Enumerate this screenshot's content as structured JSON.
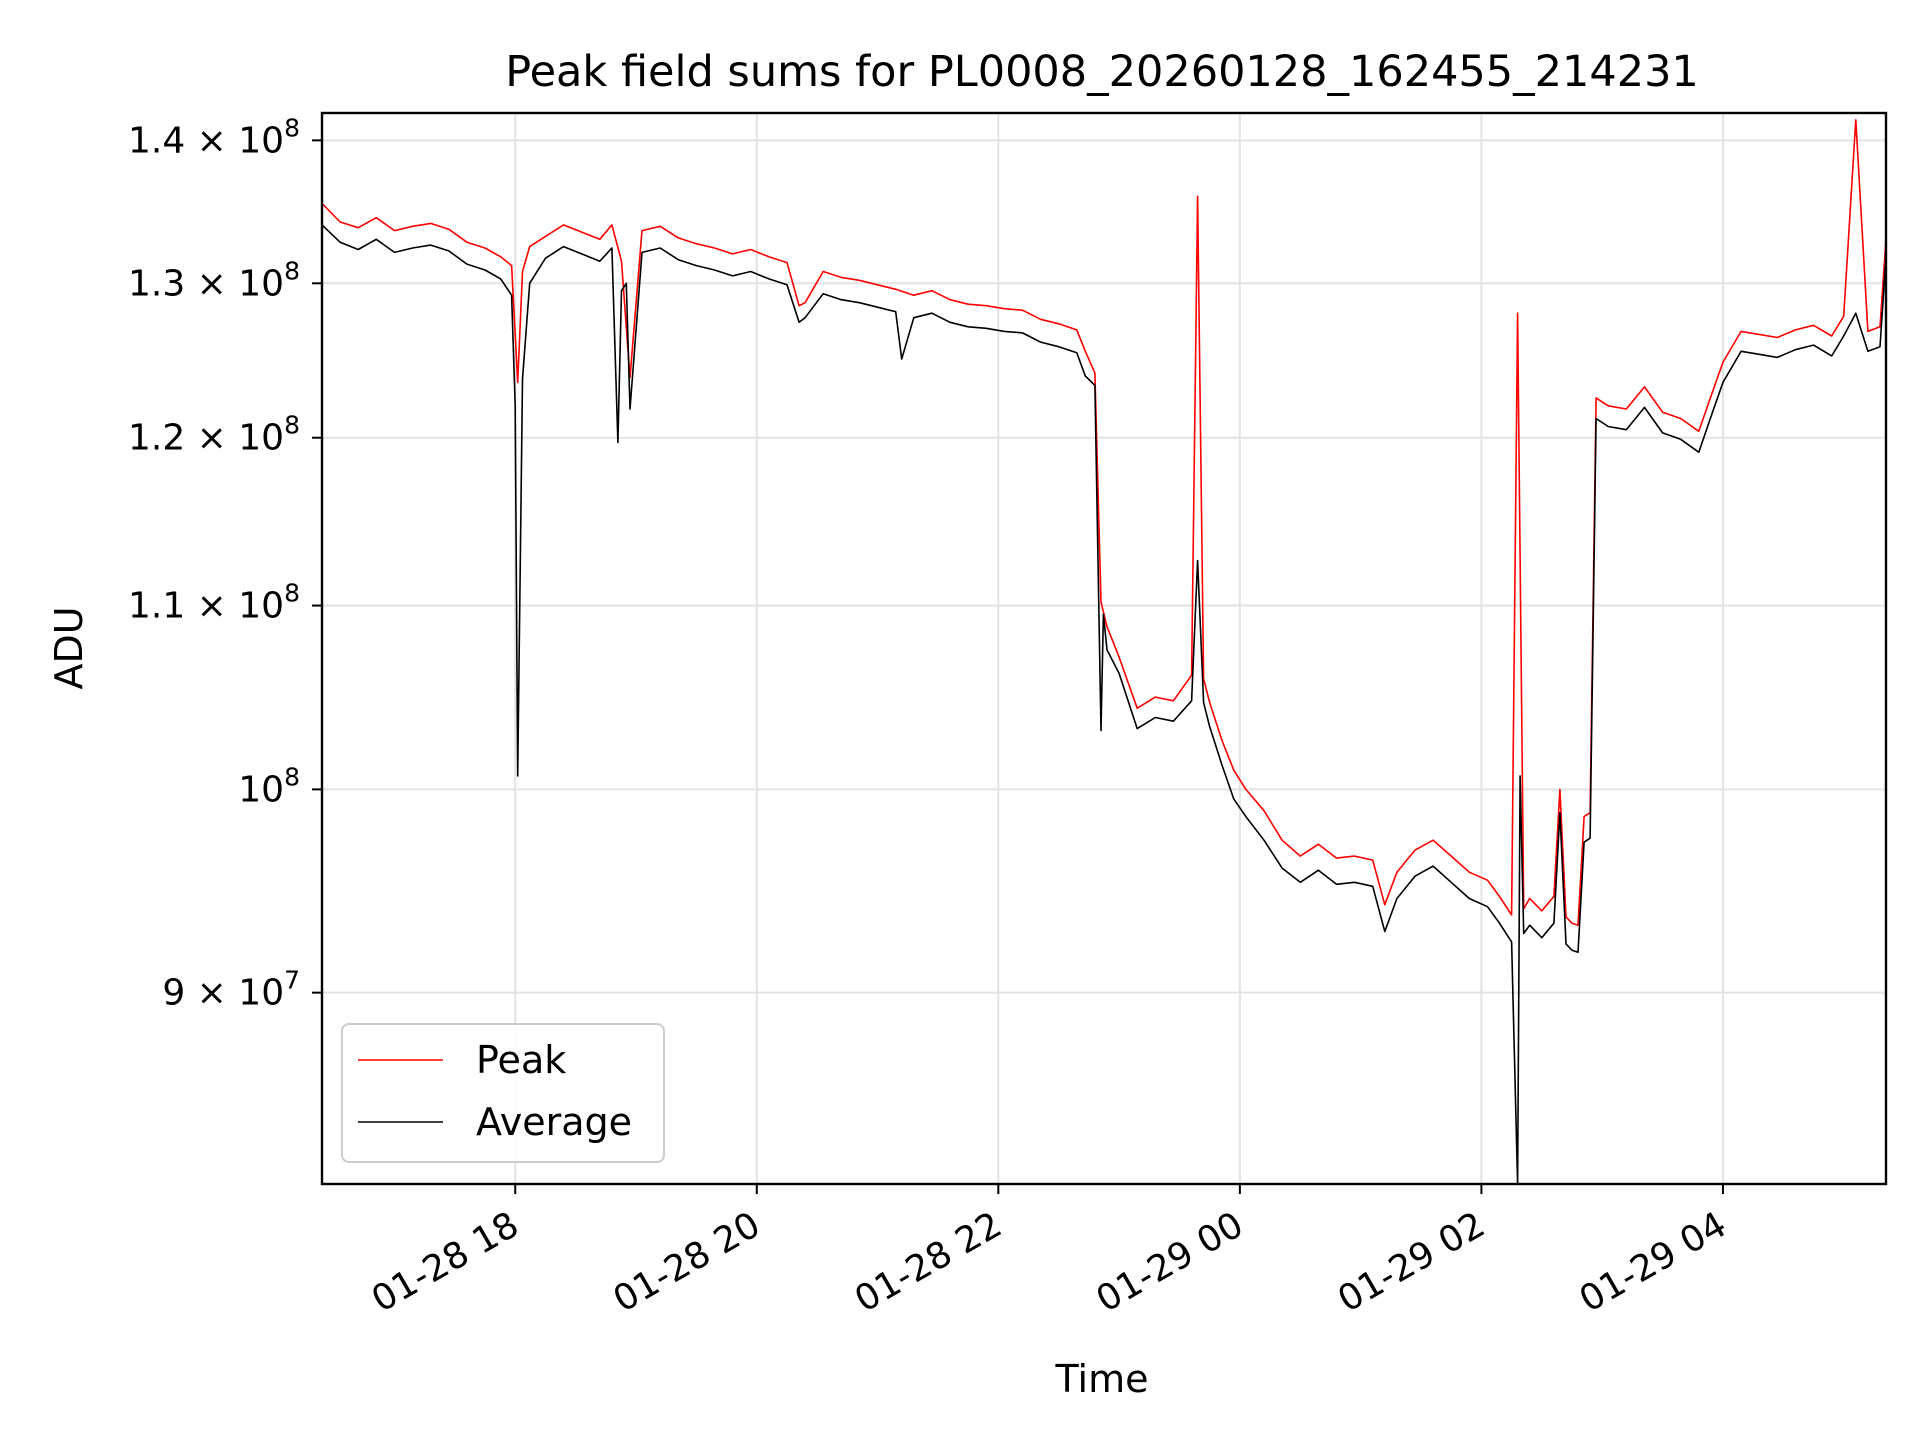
{
  "chart_data": {
    "type": "line",
    "title": "Peak field sums for PL0008_20260128_162455_214231",
    "xlabel": "Time",
    "ylabel": "ADU",
    "yscale": "log",
    "xlim_hours": [
      16.4,
      29.35
    ],
    "ylim": [
      81500000,
      142000000
    ],
    "grid": true,
    "legend_position": "lower-left",
    "x_ticks": [
      {
        "hour": 18,
        "label": "01-28 18"
      },
      {
        "hour": 20,
        "label": "01-28 20"
      },
      {
        "hour": 22,
        "label": "01-28 22"
      },
      {
        "hour": 24,
        "label": "01-29 00"
      },
      {
        "hour": 26,
        "label": "01-29 02"
      },
      {
        "hour": 28,
        "label": "01-29 04"
      }
    ],
    "y_ticks": [
      {
        "value": 90000000,
        "coef": "9",
        "exp": "7",
        "kind": "sci"
      },
      {
        "value": 100000000,
        "coef": "",
        "exp": "8",
        "kind": "pow"
      },
      {
        "value": 110000000,
        "coef": "1.1",
        "exp": "8",
        "kind": "sci"
      },
      {
        "value": 120000000,
        "coef": "1.2",
        "exp": "8",
        "kind": "sci"
      },
      {
        "value": 130000000,
        "coef": "1.3",
        "exp": "8",
        "kind": "sci"
      },
      {
        "value": 140000000,
        "coef": "1.4",
        "exp": "8",
        "kind": "sci"
      }
    ],
    "series": [
      {
        "name": "Peak",
        "color": "#ff0000",
        "x": [
          16.4,
          16.55,
          16.7,
          16.85,
          17.0,
          17.15,
          17.3,
          17.45,
          17.6,
          17.75,
          17.88,
          17.97,
          18.02,
          18.06,
          18.12,
          18.25,
          18.4,
          18.55,
          18.7,
          18.8,
          18.88,
          18.95,
          19.05,
          19.2,
          19.35,
          19.5,
          19.65,
          19.8,
          19.95,
          20.1,
          20.25,
          20.35,
          20.4,
          20.55,
          20.7,
          20.85,
          21.0,
          21.15,
          21.3,
          21.45,
          21.6,
          21.75,
          21.9,
          22.05,
          22.2,
          22.35,
          22.5,
          22.65,
          22.72,
          22.8,
          22.85,
          22.9,
          23.0,
          23.15,
          23.3,
          23.45,
          23.6,
          23.65,
          23.7,
          23.75,
          23.85,
          23.95,
          24.05,
          24.2,
          24.35,
          24.5,
          24.65,
          24.8,
          24.95,
          25.1,
          25.2,
          25.3,
          25.45,
          25.6,
          25.75,
          25.9,
          26.05,
          26.15,
          26.25,
          26.3,
          26.35,
          26.4,
          26.5,
          26.6,
          26.65,
          26.7,
          26.75,
          26.8,
          26.85,
          26.9,
          26.95,
          27.05,
          27.2,
          27.35,
          27.5,
          27.65,
          27.8,
          27.9,
          28.0,
          28.15,
          28.3,
          28.45,
          28.6,
          28.75,
          28.9,
          29.0,
          29.1,
          29.2,
          29.3,
          29.35
        ],
        "y": [
          135500000,
          134200000,
          133800000,
          134500000,
          133600000,
          133900000,
          134100000,
          133700000,
          132800000,
          132400000,
          131800000,
          131200000,
          123500000,
          130800000,
          132500000,
          133200000,
          134000000,
          133500000,
          133000000,
          134000000,
          131500000,
          123800000,
          133600000,
          133900000,
          133100000,
          132700000,
          132400000,
          132000000,
          132300000,
          131800000,
          131400000,
          128500000,
          128700000,
          130800000,
          130400000,
          130200000,
          129900000,
          129600000,
          129200000,
          129500000,
          128900000,
          128600000,
          128500000,
          128300000,
          128200000,
          127600000,
          127300000,
          126900000,
          125500000,
          124100000,
          110200000,
          108800000,
          107100000,
          104300000,
          104900000,
          104700000,
          106100000,
          136000000,
          105900000,
          104600000,
          102600000,
          101000000,
          100000000,
          98900000,
          97400000,
          96600000,
          97200000,
          96500000,
          96600000,
          96400000,
          94200000,
          95800000,
          96900000,
          97400000,
          96600000,
          95800000,
          95400000,
          94600000,
          93700000,
          128000000,
          94000000,
          94500000,
          93900000,
          94600000,
          100000000,
          93600000,
          93300000,
          93200000,
          98600000,
          98800000,
          122500000,
          122000000,
          121800000,
          123200000,
          121600000,
          121200000,
          120400000,
          122600000,
          124800000,
          126800000,
          126600000,
          126400000,
          126900000,
          127200000,
          126500000,
          127800000,
          141500000,
          126800000,
          127100000,
          133000000
        ]
      },
      {
        "name": "Average",
        "color": "#000000",
        "x": [
          16.4,
          16.55,
          16.7,
          16.85,
          17.0,
          17.15,
          17.3,
          17.45,
          17.6,
          17.75,
          17.88,
          17.97,
          18.0,
          18.02,
          18.06,
          18.12,
          18.25,
          18.4,
          18.55,
          18.7,
          18.8,
          18.85,
          18.88,
          18.92,
          18.95,
          19.05,
          19.2,
          19.35,
          19.5,
          19.65,
          19.8,
          19.95,
          20.1,
          20.25,
          20.35,
          20.4,
          20.55,
          20.7,
          20.85,
          21.0,
          21.15,
          21.2,
          21.3,
          21.45,
          21.6,
          21.75,
          21.9,
          22.05,
          22.2,
          22.35,
          22.5,
          22.65,
          22.72,
          22.8,
          22.85,
          22.87,
          22.9,
          23.0,
          23.15,
          23.3,
          23.45,
          23.6,
          23.65,
          23.7,
          23.75,
          23.85,
          23.95,
          24.05,
          24.2,
          24.35,
          24.5,
          24.65,
          24.8,
          24.95,
          25.1,
          25.2,
          25.3,
          25.45,
          25.6,
          25.75,
          25.9,
          26.05,
          26.15,
          26.25,
          26.3,
          26.32,
          26.35,
          26.4,
          26.5,
          26.6,
          26.65,
          26.7,
          26.75,
          26.8,
          26.85,
          26.9,
          26.95,
          27.05,
          27.2,
          27.35,
          27.5,
          27.65,
          27.8,
          27.9,
          28.0,
          28.15,
          28.3,
          28.45,
          28.6,
          28.75,
          28.9,
          29.0,
          29.1,
          29.2,
          29.3,
          29.35
        ],
        "y": [
          134000000,
          132800000,
          132300000,
          133000000,
          132100000,
          132400000,
          132600000,
          132200000,
          131300000,
          130900000,
          130300000,
          129200000,
          122000000,
          100700000,
          123700000,
          130000000,
          131700000,
          132500000,
          132000000,
          131500000,
          132400000,
          119700000,
          129500000,
          130000000,
          121800000,
          132100000,
          132400000,
          131600000,
          131200000,
          130900000,
          130500000,
          130800000,
          130300000,
          129900000,
          127400000,
          127700000,
          129300000,
          128900000,
          128700000,
          128400000,
          128100000,
          125000000,
          127700000,
          128000000,
          127400000,
          127100000,
          127000000,
          126800000,
          126700000,
          126100000,
          125800000,
          125400000,
          123900000,
          123300000,
          103100000,
          109500000,
          107500000,
          106200000,
          103200000,
          103800000,
          103600000,
          104700000,
          112600000,
          104600000,
          103300000,
          101300000,
          99500000,
          98600000,
          97400000,
          96000000,
          95300000,
          95900000,
          95200000,
          95300000,
          95100000,
          92900000,
          94500000,
          95600000,
          96100000,
          95300000,
          94500000,
          94100000,
          93300000,
          92400000,
          81500000,
          100700000,
          92800000,
          93200000,
          92600000,
          93300000,
          98800000,
          92300000,
          92000000,
          91900000,
          97300000,
          97500000,
          121200000,
          120700000,
          120500000,
          121900000,
          120300000,
          119900000,
          119100000,
          121300000,
          123500000,
          125500000,
          125300000,
          125100000,
          125600000,
          125900000,
          125200000,
          126500000,
          128000000,
          125500000,
          125800000,
          131800000
        ]
      }
    ]
  }
}
